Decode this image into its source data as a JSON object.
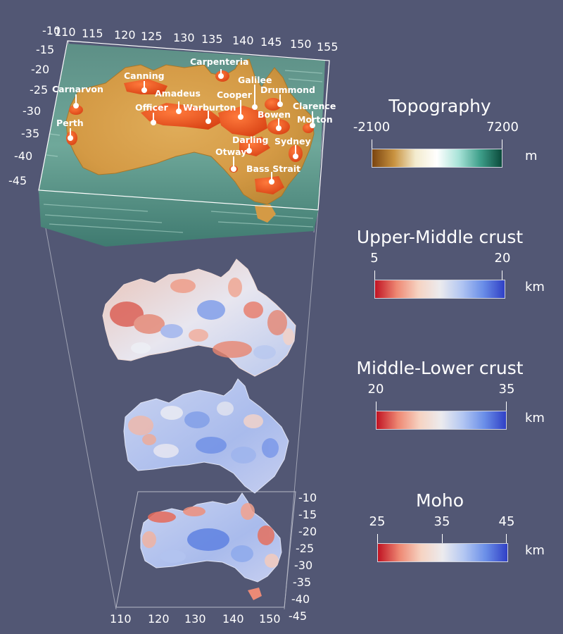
{
  "top_panel": {
    "x_ticks": [
      "110",
      "115",
      "120",
      "125",
      "130",
      "135",
      "140",
      "145",
      "150",
      "155"
    ],
    "x_ticks_overlapping": [
      "-10"
    ],
    "y_ticks": [
      "-15",
      "-20",
      "-25",
      "-30",
      "-35",
      "-40",
      "-45"
    ],
    "basins": [
      "Carpenteria",
      "Canning",
      "Galilee",
      "Drummond",
      "Amadeus",
      "Cooper",
      "Carnarvon",
      "Officer",
      "Warburton",
      "Clarence",
      "Bowen",
      "Morton",
      "Perth",
      "Darling",
      "Sydney",
      "Otway",
      "Bass Strait"
    ]
  },
  "bottom_panel": {
    "x_ticks": [
      "110",
      "120",
      "130",
      "140",
      "150"
    ],
    "y_ticks": [
      "-10",
      "-15",
      "-20",
      "-25",
      "-30",
      "-35",
      "-40",
      "-45"
    ]
  },
  "legends": [
    {
      "title": "Topography",
      "ticks": [
        "-2100",
        "7200"
      ],
      "unit": "m",
      "colors": [
        "#7a4410",
        "#c8923f",
        "#f3ebce",
        "#ffffff",
        "#a8e3d8",
        "#3e9f8a",
        "#0b4a3b"
      ]
    },
    {
      "title": "Upper-Middle crust",
      "ticks": [
        "5",
        "20"
      ],
      "unit": "km",
      "colors": [
        "#c01323",
        "#ee8873",
        "#f6d3c2",
        "#ecebee",
        "#b2c6f2",
        "#6a8ee8",
        "#3040c6"
      ]
    },
    {
      "title": "Middle-Lower crust",
      "ticks": [
        "20",
        "35"
      ],
      "unit": "km",
      "colors": [
        "#c01323",
        "#ee8873",
        "#f6d3c2",
        "#ecebee",
        "#b2c6f2",
        "#6a8ee8",
        "#3040c6"
      ]
    },
    {
      "title": "Moho",
      "ticks": [
        "25",
        "35",
        "45"
      ],
      "unit": "km",
      "colors": [
        "#c01323",
        "#ee8873",
        "#f6d3c2",
        "#ecebee",
        "#b2c6f2",
        "#6a8ee8",
        "#3040c6"
      ]
    }
  ]
}
